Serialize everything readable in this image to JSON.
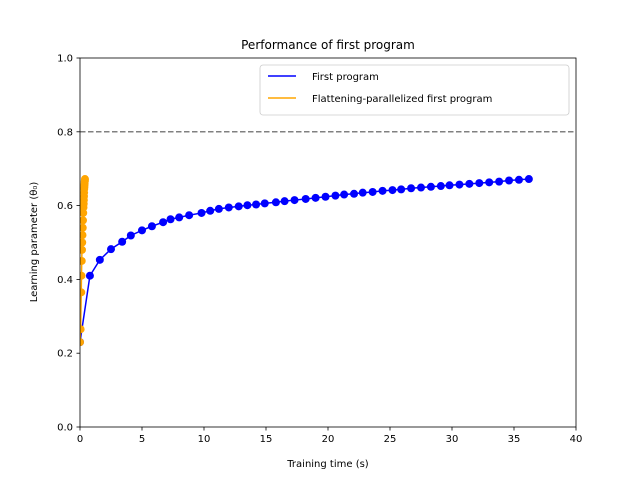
{
  "chart_data": {
    "type": "line",
    "title": "Performance of first program",
    "xlabel": "Training time (s)",
    "ylabel": "Learning parameter (θ₀)",
    "xlim": [
      0,
      40
    ],
    "ylim": [
      0.0,
      1.0
    ],
    "xticks": [
      "0",
      "5",
      "10",
      "15",
      "20",
      "25",
      "30",
      "35",
      "40"
    ],
    "yticks": [
      "0.0",
      "0.2",
      "0.4",
      "0.6",
      "0.8",
      "1.0"
    ],
    "grid": false,
    "legend_position": "top-right",
    "reference_line": {
      "y": 0.8,
      "style": "dashed",
      "color": "#808080"
    },
    "series": [
      {
        "name": "First program",
        "color": "#0000ff",
        "x": [
          0.0,
          0.8,
          1.6,
          2.5,
          3.4,
          4.1,
          5.0,
          5.8,
          6.7,
          7.3,
          8.0,
          8.8,
          9.8,
          10.5,
          11.2,
          12.0,
          12.8,
          13.5,
          14.2,
          14.9,
          15.8,
          16.5,
          17.3,
          18.2,
          19.0,
          19.8,
          20.6,
          21.3,
          22.1,
          22.8,
          23.6,
          24.4,
          25.2,
          25.9,
          26.7,
          27.5,
          28.3,
          29.1,
          29.8,
          30.6,
          31.4,
          32.2,
          33.0,
          33.8,
          34.6,
          35.4,
          36.2
        ],
        "y": [
          0.23,
          0.41,
          0.453,
          0.482,
          0.502,
          0.519,
          0.533,
          0.544,
          0.555,
          0.563,
          0.568,
          0.574,
          0.58,
          0.586,
          0.591,
          0.595,
          0.598,
          0.601,
          0.603,
          0.606,
          0.609,
          0.612,
          0.615,
          0.618,
          0.621,
          0.624,
          0.627,
          0.63,
          0.632,
          0.635,
          0.637,
          0.64,
          0.642,
          0.644,
          0.647,
          0.649,
          0.651,
          0.653,
          0.655,
          0.657,
          0.659,
          0.661,
          0.663,
          0.665,
          0.668,
          0.67,
          0.672
        ]
      },
      {
        "name": "Flattening-parallelized first program",
        "color": "#ffa500",
        "x": [
          0.0,
          0.05,
          0.1,
          0.12,
          0.14,
          0.16,
          0.18,
          0.2,
          0.22,
          0.24,
          0.26,
          0.28,
          0.3,
          0.31,
          0.32,
          0.33,
          0.34,
          0.35,
          0.36,
          0.37,
          0.38,
          0.39,
          0.4
        ],
        "y": [
          0.23,
          0.265,
          0.365,
          0.41,
          0.45,
          0.48,
          0.5,
          0.52,
          0.54,
          0.56,
          0.58,
          0.595,
          0.605,
          0.615,
          0.625,
          0.635,
          0.645,
          0.65,
          0.655,
          0.66,
          0.665,
          0.668,
          0.672
        ]
      }
    ]
  }
}
